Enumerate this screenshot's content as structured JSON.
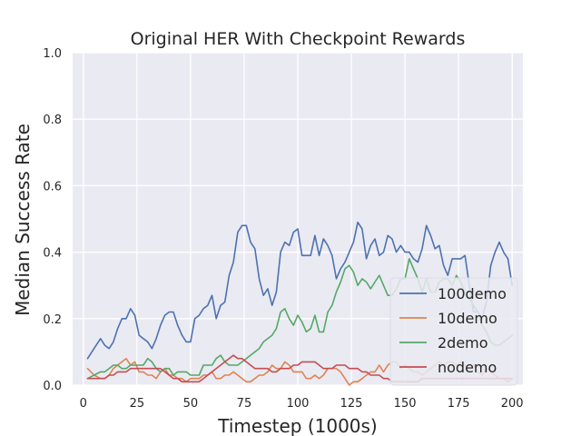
{
  "chart_data": {
    "type": "line",
    "title": "Original HER With Checkpoint Rewards",
    "xlabel": "Timestep (1000s)",
    "ylabel": "Median Success Rate",
    "xlim": [
      -5,
      205
    ],
    "ylim": [
      0,
      1.0
    ],
    "xticks": [
      0,
      25,
      50,
      75,
      100,
      125,
      150,
      175,
      200
    ],
    "yticks": [
      0.0,
      0.2,
      0.4,
      0.6,
      0.8,
      1.0
    ],
    "xtick_labels": [
      "0",
      "25",
      "50",
      "75",
      "100",
      "125",
      "150",
      "175",
      "200"
    ],
    "ytick_labels": [
      "0.0",
      "0.2",
      "0.4",
      "0.6",
      "0.8",
      "1.0"
    ],
    "grid": true,
    "legend_position": "lower-right",
    "series": [
      {
        "name": "100demo",
        "color": "#4c72b0",
        "x": [
          2,
          5,
          8,
          10,
          12,
          14,
          16,
          18,
          20,
          22,
          24,
          26,
          28,
          30,
          32,
          34,
          36,
          38,
          40,
          42,
          44,
          46,
          48,
          50,
          52,
          54,
          56,
          58,
          60,
          62,
          64,
          66,
          68,
          70,
          72,
          74,
          76,
          78,
          80,
          82,
          84,
          86,
          88,
          90,
          92,
          94,
          96,
          98,
          100,
          102,
          104,
          106,
          108,
          110,
          112,
          114,
          116,
          118,
          120,
          122,
          124,
          126,
          128,
          130,
          132,
          134,
          136,
          138,
          140,
          142,
          144,
          146,
          148,
          150,
          152,
          154,
          156,
          158,
          160,
          162,
          164,
          166,
          168,
          170,
          172,
          174,
          176,
          178,
          180,
          182,
          184,
          186,
          188,
          190,
          192,
          194,
          196,
          198,
          200
        ],
        "y": [
          0.08,
          0.11,
          0.14,
          0.12,
          0.11,
          0.13,
          0.17,
          0.2,
          0.2,
          0.23,
          0.21,
          0.15,
          0.14,
          0.13,
          0.11,
          0.14,
          0.18,
          0.21,
          0.22,
          0.22,
          0.18,
          0.15,
          0.13,
          0.13,
          0.2,
          0.21,
          0.23,
          0.24,
          0.27,
          0.2,
          0.24,
          0.25,
          0.33,
          0.37,
          0.46,
          0.48,
          0.48,
          0.43,
          0.41,
          0.32,
          0.27,
          0.29,
          0.24,
          0.28,
          0.4,
          0.43,
          0.42,
          0.46,
          0.47,
          0.39,
          0.39,
          0.39,
          0.45,
          0.39,
          0.44,
          0.42,
          0.39,
          0.32,
          0.35,
          0.37,
          0.4,
          0.43,
          0.49,
          0.47,
          0.38,
          0.42,
          0.44,
          0.39,
          0.4,
          0.45,
          0.44,
          0.4,
          0.42,
          0.4,
          0.4,
          0.38,
          0.37,
          0.41,
          0.48,
          0.45,
          0.41,
          0.42,
          0.36,
          0.33,
          0.38,
          0.38,
          0.38,
          0.39,
          0.3,
          0.22,
          0.22,
          0.2,
          0.25,
          0.36,
          0.4,
          0.43,
          0.4,
          0.38,
          0.3
        ]
      },
      {
        "name": "10demo",
        "color": "#dd8452",
        "x": [
          2,
          5,
          8,
          10,
          12,
          14,
          16,
          18,
          20,
          22,
          24,
          26,
          28,
          30,
          32,
          34,
          36,
          38,
          40,
          42,
          44,
          46,
          48,
          50,
          52,
          54,
          56,
          58,
          60,
          62,
          64,
          66,
          68,
          70,
          72,
          74,
          76,
          78,
          80,
          82,
          84,
          86,
          88,
          90,
          92,
          94,
          96,
          98,
          100,
          102,
          104,
          106,
          108,
          110,
          112,
          114,
          116,
          118,
          120,
          122,
          124,
          126,
          128,
          130,
          132,
          134,
          136,
          138,
          140,
          142,
          144,
          146,
          148,
          150,
          152,
          154,
          156,
          158,
          160,
          162,
          164,
          166,
          168,
          170,
          172,
          174,
          176,
          178,
          180,
          182,
          184,
          186,
          188,
          190,
          192,
          194,
          196,
          198,
          200
        ],
        "y": [
          0.05,
          0.03,
          0.02,
          0.02,
          0.03,
          0.05,
          0.06,
          0.07,
          0.08,
          0.06,
          0.07,
          0.04,
          0.04,
          0.03,
          0.03,
          0.02,
          0.04,
          0.05,
          0.03,
          0.03,
          0.02,
          0.02,
          0.01,
          0.02,
          0.02,
          0.02,
          0.03,
          0.03,
          0.04,
          0.02,
          0.02,
          0.03,
          0.03,
          0.04,
          0.03,
          0.02,
          0.01,
          0.01,
          0.02,
          0.03,
          0.03,
          0.04,
          0.06,
          0.05,
          0.05,
          0.07,
          0.06,
          0.04,
          0.04,
          0.04,
          0.02,
          0.02,
          0.03,
          0.02,
          0.03,
          0.05,
          0.05,
          0.05,
          0.04,
          0.02,
          0.0,
          0.01,
          0.01,
          0.02,
          0.03,
          0.04,
          0.04,
          0.06,
          0.04,
          0.06,
          0.07,
          0.07,
          0.05,
          0.06,
          0.05,
          0.04,
          0.04,
          0.03,
          0.04,
          0.05,
          0.06,
          0.07,
          0.06,
          0.07,
          0.07,
          0.06,
          0.07,
          0.06,
          0.05,
          0.06,
          0.04,
          0.03,
          0.05,
          0.04,
          0.03,
          0.02,
          0.02,
          0.01,
          0.02
        ]
      },
      {
        "name": "2demo",
        "color": "#55a868",
        "x": [
          2,
          5,
          8,
          10,
          12,
          14,
          16,
          18,
          20,
          22,
          24,
          26,
          28,
          30,
          32,
          34,
          36,
          38,
          40,
          42,
          44,
          46,
          48,
          50,
          52,
          54,
          56,
          58,
          60,
          62,
          64,
          66,
          68,
          70,
          72,
          74,
          76,
          78,
          80,
          82,
          84,
          86,
          88,
          90,
          92,
          94,
          96,
          98,
          100,
          102,
          104,
          106,
          108,
          110,
          112,
          114,
          116,
          118,
          120,
          122,
          124,
          126,
          128,
          130,
          132,
          134,
          136,
          138,
          140,
          142,
          144,
          146,
          148,
          150,
          152,
          154,
          156,
          158,
          160,
          162,
          164,
          166,
          168,
          170,
          172,
          174,
          176,
          178,
          180,
          182,
          184,
          186,
          188,
          190,
          192,
          194,
          196,
          198,
          200
        ],
        "y": [
          0.02,
          0.03,
          0.04,
          0.04,
          0.05,
          0.06,
          0.06,
          0.05,
          0.05,
          0.06,
          0.06,
          0.06,
          0.06,
          0.08,
          0.07,
          0.05,
          0.04,
          0.05,
          0.05,
          0.03,
          0.04,
          0.04,
          0.04,
          0.03,
          0.03,
          0.03,
          0.06,
          0.06,
          0.06,
          0.08,
          0.09,
          0.07,
          0.06,
          0.06,
          0.06,
          0.07,
          0.08,
          0.09,
          0.1,
          0.11,
          0.13,
          0.14,
          0.15,
          0.17,
          0.22,
          0.23,
          0.2,
          0.18,
          0.21,
          0.19,
          0.16,
          0.17,
          0.21,
          0.16,
          0.16,
          0.22,
          0.24,
          0.28,
          0.31,
          0.35,
          0.36,
          0.34,
          0.3,
          0.32,
          0.31,
          0.29,
          0.31,
          0.33,
          0.3,
          0.27,
          0.27,
          0.29,
          0.32,
          0.32,
          0.38,
          0.35,
          0.32,
          0.28,
          0.32,
          0.28,
          0.28,
          0.31,
          0.32,
          0.32,
          0.3,
          0.33,
          0.31,
          0.28,
          0.26,
          0.24,
          0.22,
          0.18,
          0.16,
          0.13,
          0.12,
          0.12,
          0.13,
          0.14,
          0.15
        ]
      },
      {
        "name": "nodemo",
        "color": "#c44e52",
        "x": [
          2,
          5,
          8,
          10,
          12,
          14,
          16,
          18,
          20,
          22,
          24,
          26,
          28,
          30,
          32,
          34,
          36,
          38,
          40,
          42,
          44,
          46,
          48,
          50,
          52,
          54,
          56,
          58,
          60,
          62,
          64,
          66,
          68,
          70,
          72,
          74,
          76,
          78,
          80,
          82,
          84,
          86,
          88,
          90,
          92,
          94,
          96,
          98,
          100,
          102,
          104,
          106,
          108,
          110,
          112,
          114,
          116,
          118,
          120,
          122,
          124,
          126,
          128,
          130,
          132,
          134,
          136,
          138,
          140,
          142,
          144,
          146,
          148,
          150,
          152,
          154,
          156,
          158,
          160,
          162,
          164,
          166,
          168,
          170,
          172,
          174,
          176,
          178,
          180,
          182,
          184,
          186,
          188,
          190,
          192,
          194,
          196,
          198,
          200
        ],
        "y": [
          0.02,
          0.02,
          0.02,
          0.02,
          0.03,
          0.03,
          0.04,
          0.04,
          0.04,
          0.05,
          0.05,
          0.05,
          0.05,
          0.05,
          0.05,
          0.05,
          0.05,
          0.04,
          0.03,
          0.02,
          0.02,
          0.01,
          0.01,
          0.01,
          0.01,
          0.01,
          0.02,
          0.03,
          0.04,
          0.05,
          0.06,
          0.07,
          0.08,
          0.09,
          0.08,
          0.08,
          0.07,
          0.06,
          0.05,
          0.05,
          0.05,
          0.05,
          0.04,
          0.04,
          0.05,
          0.05,
          0.05,
          0.06,
          0.06,
          0.07,
          0.07,
          0.07,
          0.07,
          0.06,
          0.05,
          0.05,
          0.05,
          0.06,
          0.06,
          0.06,
          0.05,
          0.05,
          0.05,
          0.04,
          0.04,
          0.03,
          0.03,
          0.03,
          0.02,
          0.02,
          0.01,
          0.01,
          0.01,
          0.01,
          0.01,
          0.01,
          0.01,
          0.02,
          0.02,
          0.02,
          0.02,
          0.02,
          0.02,
          0.02,
          0.02,
          0.02,
          0.02,
          0.02,
          0.02,
          0.02,
          0.02,
          0.02,
          0.02,
          0.02,
          0.02,
          0.02,
          0.02,
          0.02,
          0.02
        ]
      }
    ]
  }
}
